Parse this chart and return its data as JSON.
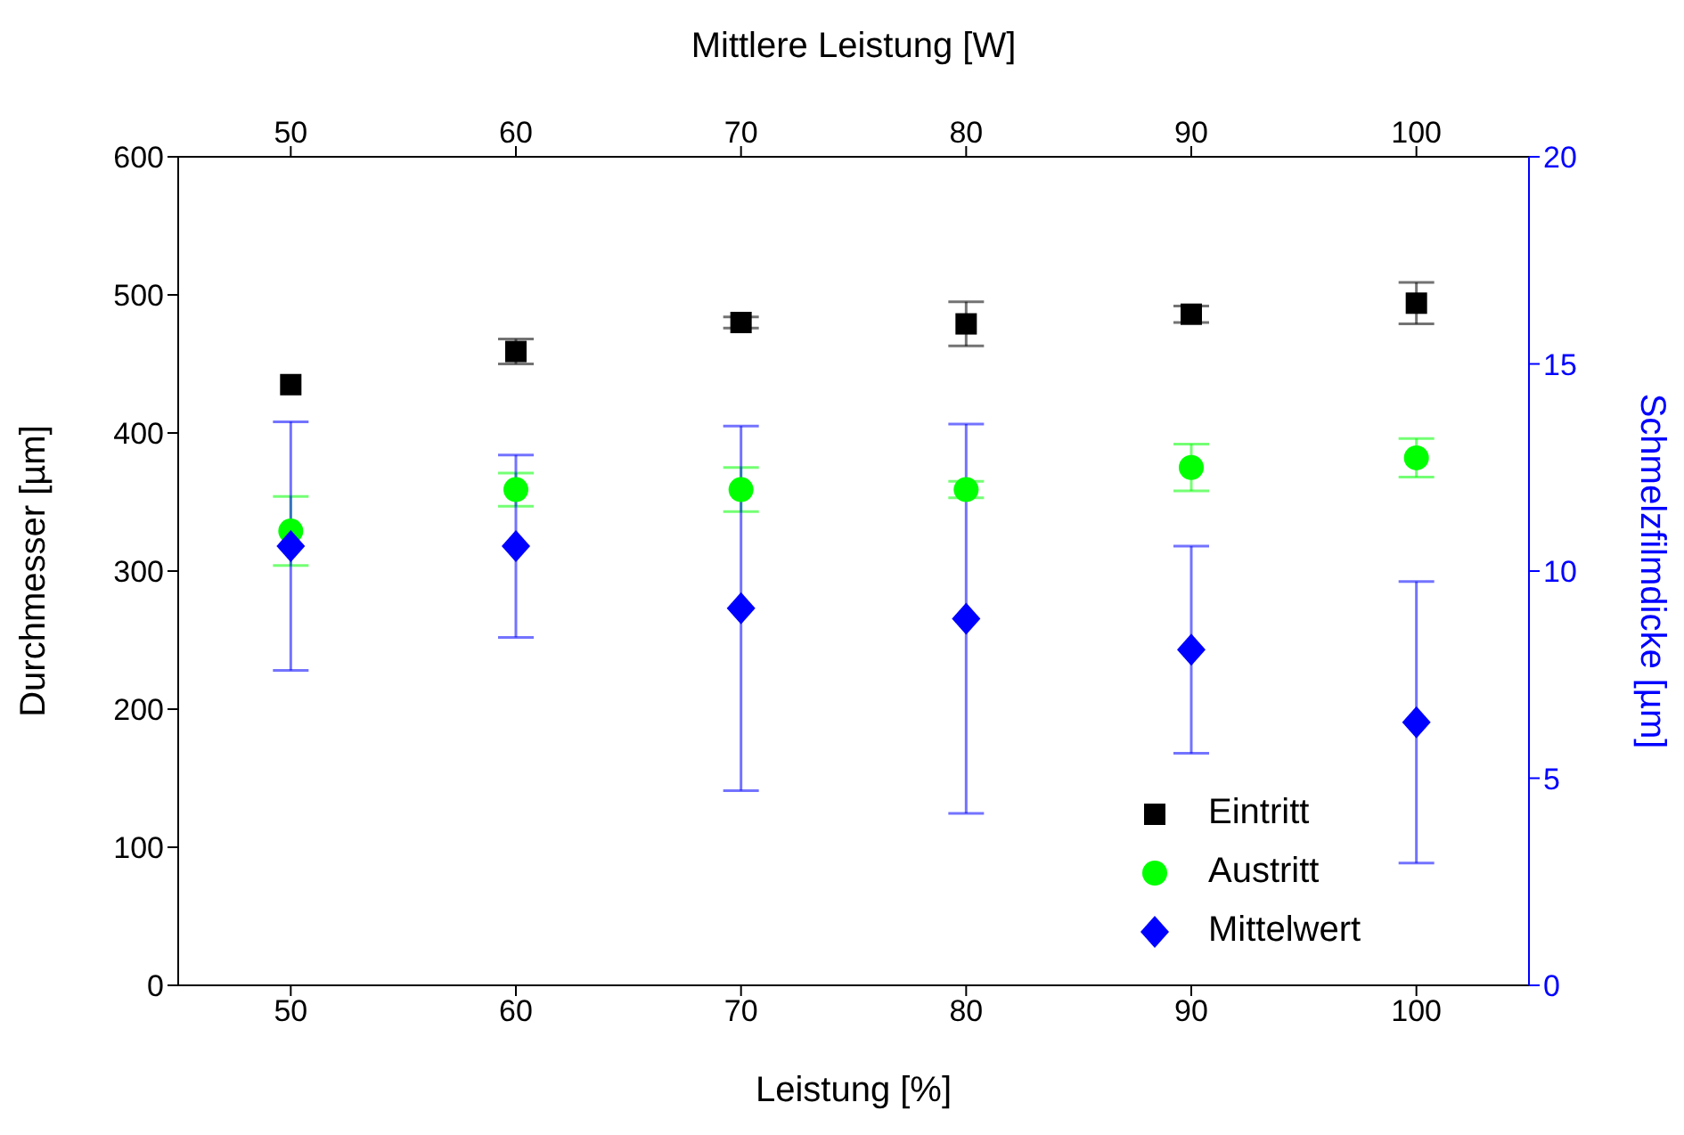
{
  "chart_data": {
    "type": "scatter",
    "xlabel": "Leistung [%]",
    "ylabel": "Durchmesser [µm]",
    "y2label": "Schmelzfilmdicke [µm]",
    "x2label": "Mittlere Leistung [W]",
    "x": [
      50,
      60,
      70,
      80,
      90,
      100
    ],
    "xlim": [
      45,
      105
    ],
    "xticks": [
      50,
      60,
      70,
      80,
      90,
      100
    ],
    "x2lim": [
      45,
      105
    ],
    "x2ticks": [
      50,
      60,
      70,
      80,
      90,
      100
    ],
    "ylim": [
      0,
      600
    ],
    "yticks": [
      0,
      100,
      200,
      300,
      400,
      500,
      600
    ],
    "y2lim": [
      0,
      20
    ],
    "y2ticks": [
      0,
      5,
      10,
      15,
      20
    ],
    "grid": false,
    "legend": "bottom right",
    "series": [
      {
        "name": "Eintritt",
        "color": "#000000",
        "marker": "square",
        "values": [
          435,
          459,
          480,
          479,
          486,
          494
        ],
        "errors": [
          null,
          9,
          4,
          16,
          6,
          15
        ]
      },
      {
        "name": "Austritt",
        "color": "#00ff00",
        "marker": "circle",
        "values": [
          329,
          359,
          359,
          359,
          375,
          382
        ],
        "errors": [
          25,
          12,
          16,
          6,
          17,
          14
        ]
      },
      {
        "name": "Mittelwert",
        "color": "#0000ff",
        "marker": "diamond",
        "axis": "y2",
        "values": [
          10.6,
          10.6,
          9.1,
          8.85,
          8.1,
          6.35
        ],
        "errors": [
          3.0,
          2.2,
          4.4,
          4.7,
          2.5,
          3.4
        ]
      }
    ]
  }
}
